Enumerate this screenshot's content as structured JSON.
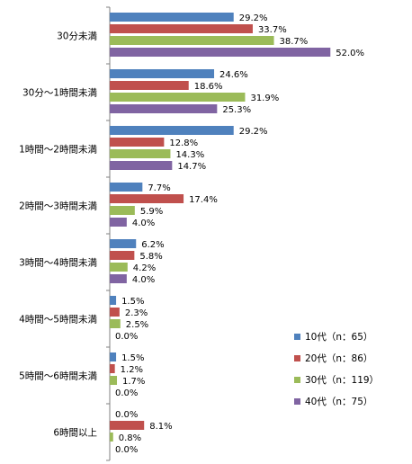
{
  "chart_data": {
    "type": "bar",
    "orientation": "horizontal",
    "categories": [
      "30分未満",
      "30分～1時間未満",
      "1時間～2時間未満",
      "2時間～3時間未満",
      "3時間～4時間未満",
      "4時間～5時間未満",
      "5時間～6時間未満",
      "6時間以上"
    ],
    "series": [
      {
        "name": "10代（n：65）",
        "color": "#4F81BD",
        "values": [
          29.2,
          24.6,
          29.2,
          7.7,
          6.2,
          1.5,
          1.5,
          0.0
        ]
      },
      {
        "name": "20代（n：86）",
        "color": "#C0504D",
        "values": [
          33.7,
          18.6,
          12.8,
          17.4,
          5.8,
          2.3,
          1.2,
          8.1
        ]
      },
      {
        "name": "30代（n：119）",
        "color": "#9BBB59",
        "values": [
          38.7,
          31.9,
          14.3,
          5.9,
          4.2,
          2.5,
          1.7,
          0.8
        ]
      },
      {
        "name": "40代（n：75）",
        "color": "#8064A2",
        "values": [
          52.0,
          25.3,
          14.7,
          4.0,
          4.0,
          0.0,
          0.0,
          0.0
        ]
      }
    ],
    "value_format": "percent_1dp",
    "xlim": [
      0,
      60
    ],
    "grid": false,
    "legend_position": "right"
  }
}
